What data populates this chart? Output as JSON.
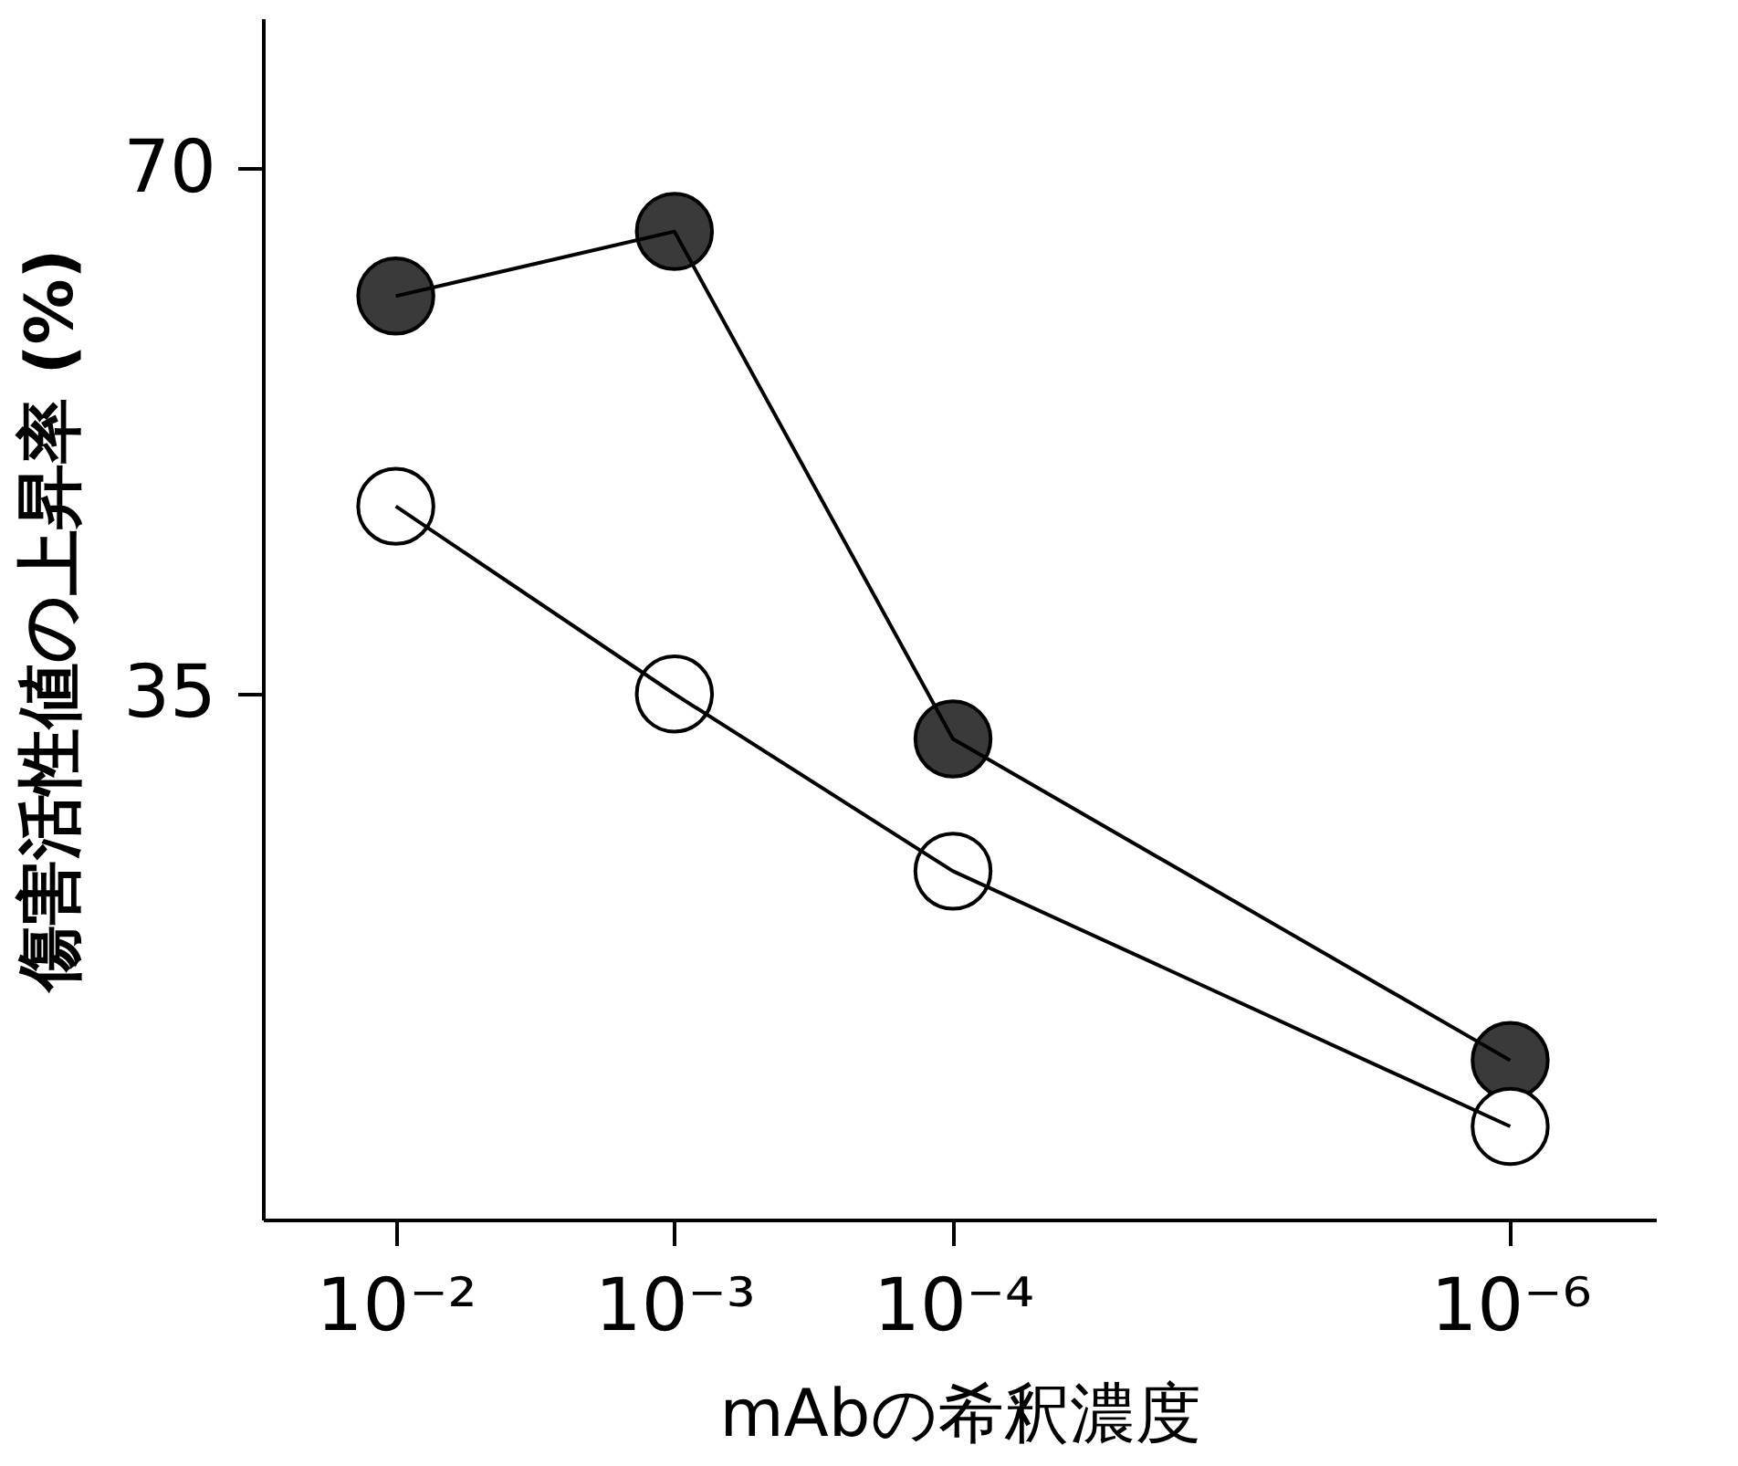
{
  "chart_data": {
    "type": "line",
    "xlabel": "mAbの希釈濃度",
    "ylabel": "傷害活性値の上昇率 (%)",
    "x": [
      0.01,
      0.001,
      0.0001,
      1e-06
    ],
    "log": "x",
    "xlim": [
      0.03,
      3e-07
    ],
    "xticks": [
      {
        "value": 0.01,
        "label": "10⁻²"
      },
      {
        "value": 0.001,
        "label": "10⁻³"
      },
      {
        "value": 0.0001,
        "label": "10⁻⁴"
      },
      {
        "value": 1e-06,
        "label": "10⁻⁶"
      }
    ],
    "ylim": [
      0,
      80
    ],
    "yticks": [
      35,
      70
    ],
    "grid": false,
    "marker": "circle",
    "line_style": "solid",
    "series": [
      {
        "color": "#3a3a3a",
        "values": [
          61.5,
          65.8,
          32,
          10.6
        ]
      },
      {
        "color": "#ffffff",
        "values": [
          47.5,
          35,
          23.2,
          6.2
        ]
      }
    ]
  }
}
